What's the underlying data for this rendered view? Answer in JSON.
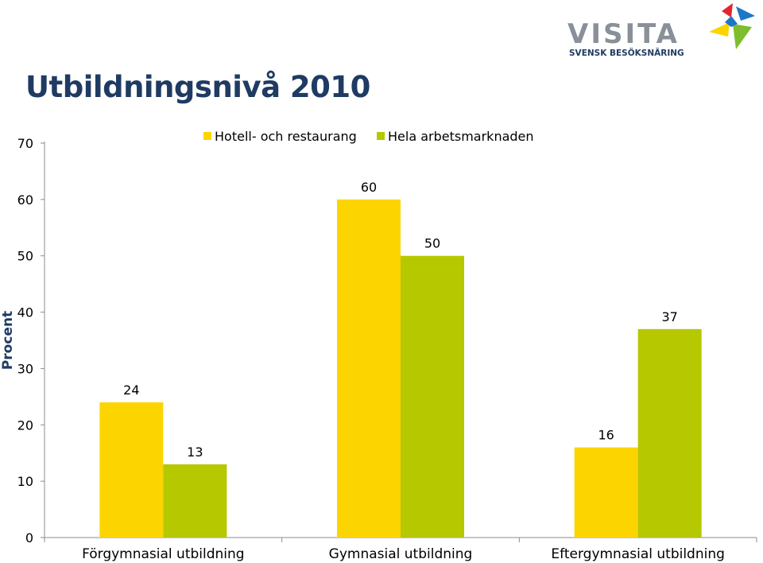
{
  "header": {
    "title": "Utbildningsnivå 2010"
  },
  "logo": {
    "brand": "VISITA",
    "tagline": "SVENSK BESÖKSNÄRING"
  },
  "colors": {
    "series_1": "#fcd400",
    "series_2": "#b5c800",
    "axis": "#8c8c8c",
    "title": "#1f3b63",
    "logo_text": "#8a9099",
    "logo_red": "#e4262c",
    "logo_blue": "#1e76c9",
    "logo_yellow": "#fcd400",
    "logo_green": "#7dbd2e"
  },
  "chart_data": {
    "type": "bar",
    "categories": [
      "Förgymnasial utbildning",
      "Gymnasial utbildning",
      "Eftergymnasial utbildning"
    ],
    "series": [
      {
        "name": "Hotell- och restaurang",
        "values": [
          24,
          60,
          16
        ]
      },
      {
        "name": "Hela arbetsmarknaden",
        "values": [
          13,
          50,
          37
        ]
      }
    ],
    "data_labels": [
      [
        "24",
        "60",
        "16"
      ],
      [
        "13",
        "50",
        "37"
      ]
    ],
    "title": "Utbildningsnivå 2010",
    "xlabel": "",
    "ylabel": "Procent",
    "ylim": [
      0,
      70
    ],
    "yticks": [
      "0",
      "10",
      "20",
      "30",
      "40",
      "50",
      "60",
      "70"
    ],
    "grid": false,
    "legend_position": "top"
  }
}
